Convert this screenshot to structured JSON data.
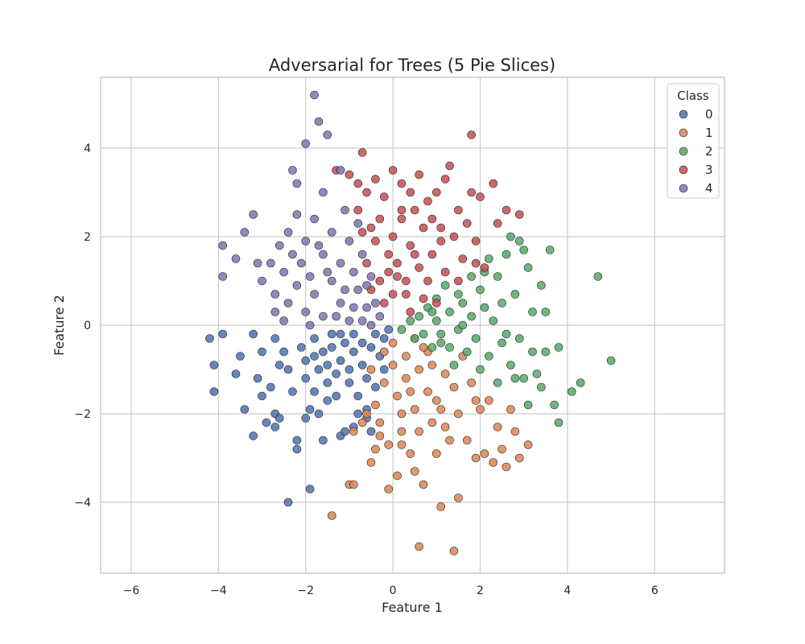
{
  "chart_data": {
    "type": "scatter",
    "title": "Adversarial for Trees (5 Pie Slices)",
    "xlabel": "Feature 1",
    "ylabel": "Feature 2",
    "xlim": [
      -6.7,
      7.6
    ],
    "ylim": [
      -5.6,
      5.6
    ],
    "xticks": [
      -6,
      -4,
      -2,
      0,
      2,
      4,
      6
    ],
    "yticks": [
      -4,
      -2,
      0,
      2,
      4
    ],
    "grid": true,
    "legend": {
      "title": "Class",
      "placement": "top-right"
    },
    "series": [
      {
        "name": "0",
        "color": "#4c72b0",
        "points": [
          [
            -4.2,
            -0.3
          ],
          [
            -4.1,
            -0.9
          ],
          [
            -4.1,
            -1.5
          ],
          [
            -3.9,
            -0.2
          ],
          [
            -3.5,
            -0.7
          ],
          [
            -3.6,
            -1.1
          ],
          [
            -3.4,
            -1.9
          ],
          [
            -3.2,
            -0.2
          ],
          [
            -3.2,
            -2.5
          ],
          [
            -3.1,
            -1.2
          ],
          [
            -3.0,
            -0.6
          ],
          [
            -3.0,
            -1.6
          ],
          [
            -2.9,
            -2.2
          ],
          [
            -2.8,
            -1.4
          ],
          [
            -2.7,
            -0.3
          ],
          [
            -2.7,
            -2.0
          ],
          [
            -2.7,
            -2.3
          ],
          [
            -2.6,
            -0.9
          ],
          [
            -2.5,
            -0.6
          ],
          [
            -2.4,
            -4.0
          ],
          [
            -2.3,
            -1.5
          ],
          [
            -2.2,
            -2.6
          ],
          [
            -2.2,
            -2.8
          ],
          [
            -2.1,
            -0.5
          ],
          [
            -2.0,
            -0.8
          ],
          [
            -2.0,
            -1.2
          ],
          [
            -1.9,
            -1.9
          ],
          [
            -1.9,
            -3.7
          ],
          [
            -1.8,
            -0.3
          ],
          [
            -1.8,
            -1.5
          ],
          [
            -1.7,
            -1.0
          ],
          [
            -1.7,
            -2.0
          ],
          [
            -1.6,
            -0.6
          ],
          [
            -1.6,
            -2.6
          ],
          [
            -1.5,
            -0.9
          ],
          [
            -1.5,
            -1.3
          ],
          [
            -1.4,
            -0.2
          ],
          [
            -1.4,
            -0.5
          ],
          [
            -1.3,
            -1.1
          ],
          [
            -1.3,
            -1.6
          ],
          [
            -1.2,
            -2.5
          ],
          [
            -1.2,
            -0.8
          ],
          [
            -1.1,
            -0.4
          ],
          [
            -1.0,
            -1.3
          ],
          [
            -1.0,
            -1.0
          ],
          [
            -0.9,
            -0.2
          ],
          [
            -0.9,
            -0.6
          ],
          [
            -0.9,
            -2.3
          ],
          [
            -0.8,
            -1.6
          ],
          [
            -0.8,
            -2.0
          ],
          [
            -0.7,
            -0.4
          ],
          [
            -0.7,
            -0.9
          ],
          [
            -0.6,
            -1.2
          ],
          [
            -0.6,
            -1.9
          ],
          [
            -0.5,
            -0.5
          ],
          [
            -0.5,
            -2.4
          ],
          [
            -0.4,
            -0.2
          ],
          [
            -0.4,
            -1.4
          ],
          [
            -0.3,
            -0.7
          ],
          [
            -0.2,
            -0.3
          ],
          [
            -0.2,
            -1.0
          ],
          [
            -0.1,
            -0.1
          ],
          [
            -2.4,
            -1.0
          ],
          [
            -1.5,
            -1.7
          ],
          [
            -2.0,
            -2.1
          ],
          [
            -1.1,
            -2.4
          ],
          [
            -0.6,
            -2.1
          ],
          [
            -2.6,
            -2.1
          ],
          [
            -1.8,
            -0.7
          ],
          [
            -1.2,
            -0.2
          ]
        ]
      },
      {
        "name": "1",
        "color": "#dd8452",
        "points": [
          [
            -1.4,
            -4.3
          ],
          [
            -1.0,
            -3.6
          ],
          [
            -0.9,
            -3.6
          ],
          [
            -0.9,
            -2.4
          ],
          [
            -0.7,
            -2.2
          ],
          [
            -0.5,
            -3.1
          ],
          [
            -0.4,
            -2.8
          ],
          [
            -0.4,
            -1.8
          ],
          [
            -0.3,
            -2.2
          ],
          [
            -0.2,
            -1.3
          ],
          [
            -0.1,
            -3.7
          ],
          [
            -0.1,
            -2.7
          ],
          [
            0.0,
            -0.4
          ],
          [
            0.0,
            -0.9
          ],
          [
            0.1,
            -1.6
          ],
          [
            0.1,
            -3.4
          ],
          [
            0.2,
            -2.7
          ],
          [
            0.2,
            -2.0
          ],
          [
            0.3,
            -0.7
          ],
          [
            0.3,
            -1.2
          ],
          [
            0.4,
            -2.9
          ],
          [
            0.5,
            -0.3
          ],
          [
            0.5,
            -1.9
          ],
          [
            0.6,
            -2.4
          ],
          [
            0.6,
            -1.0
          ],
          [
            0.6,
            -5.0
          ],
          [
            0.7,
            -3.6
          ],
          [
            0.8,
            -1.5
          ],
          [
            0.8,
            -0.6
          ],
          [
            0.9,
            -2.2
          ],
          [
            1.0,
            -2.9
          ],
          [
            1.1,
            -4.1
          ],
          [
            1.1,
            -1.9
          ],
          [
            1.2,
            -1.1
          ],
          [
            1.3,
            -2.6
          ],
          [
            1.4,
            -5.1
          ],
          [
            1.4,
            -1.4
          ],
          [
            1.5,
            -3.9
          ],
          [
            1.5,
            -2.0
          ],
          [
            1.6,
            -0.7
          ],
          [
            1.7,
            -2.6
          ],
          [
            1.8,
            -1.3
          ],
          [
            1.9,
            -3.0
          ],
          [
            2.0,
            -1.9
          ],
          [
            2.1,
            -2.9
          ],
          [
            2.2,
            -1.7
          ],
          [
            2.3,
            -3.1
          ],
          [
            2.4,
            -2.3
          ],
          [
            2.5,
            -2.8
          ],
          [
            2.6,
            -3.2
          ],
          [
            2.7,
            -1.9
          ],
          [
            2.8,
            -2.4
          ],
          [
            3.1,
            -2.7
          ],
          [
            -0.5,
            -1.0
          ],
          [
            -0.2,
            -0.6
          ],
          [
            0.4,
            -1.5
          ],
          [
            0.9,
            -0.9
          ],
          [
            1.2,
            -2.3
          ],
          [
            -0.3,
            -2.5
          ],
          [
            0.7,
            -0.5
          ],
          [
            1.9,
            -1.7
          ],
          [
            0.2,
            -2.4
          ],
          [
            1.0,
            -1.7
          ],
          [
            -0.6,
            -2.0
          ],
          [
            0.5,
            -3.3
          ],
          [
            2.9,
            -3.0
          ]
        ]
      },
      {
        "name": "2",
        "color": "#55a868",
        "points": [
          [
            0.2,
            -0.1
          ],
          [
            0.4,
            0.1
          ],
          [
            0.5,
            -0.3
          ],
          [
            0.6,
            0.2
          ],
          [
            0.7,
            -0.2
          ],
          [
            0.8,
            0.4
          ],
          [
            0.9,
            -0.5
          ],
          [
            1.0,
            0.6
          ],
          [
            1.0,
            0.1
          ],
          [
            1.1,
            -0.4
          ],
          [
            1.2,
            0.9
          ],
          [
            1.3,
            0.3
          ],
          [
            1.4,
            -0.9
          ],
          [
            1.5,
            0.7
          ],
          [
            1.5,
            -0.1
          ],
          [
            1.6,
            0.5
          ],
          [
            1.7,
            -0.6
          ],
          [
            1.8,
            1.1
          ],
          [
            1.8,
            0.2
          ],
          [
            1.9,
            -0.3
          ],
          [
            2.0,
            0.8
          ],
          [
            2.0,
            -1.0
          ],
          [
            2.1,
            0.4
          ],
          [
            2.2,
            1.5
          ],
          [
            2.2,
            -0.7
          ],
          [
            2.3,
            0.1
          ],
          [
            2.4,
            1.1
          ],
          [
            2.4,
            -1.3
          ],
          [
            2.5,
            0.5
          ],
          [
            2.6,
            -0.2
          ],
          [
            2.6,
            1.6
          ],
          [
            2.7,
            -0.9
          ],
          [
            2.7,
            2.0
          ],
          [
            2.8,
            0.7
          ],
          [
            2.9,
            1.9
          ],
          [
            2.9,
            -0.3
          ],
          [
            3.0,
            -1.2
          ],
          [
            3.1,
            1.3
          ],
          [
            3.1,
            -1.8
          ],
          [
            3.2,
            0.3
          ],
          [
            3.2,
            -0.6
          ],
          [
            3.3,
            -1.1
          ],
          [
            3.4,
            0.9
          ],
          [
            3.4,
            -1.4
          ],
          [
            3.5,
            0.3
          ],
          [
            3.5,
            -0.6
          ],
          [
            3.6,
            1.7
          ],
          [
            3.7,
            -1.8
          ],
          [
            3.8,
            -0.5
          ],
          [
            3.8,
            -2.2
          ],
          [
            4.1,
            -1.5
          ],
          [
            4.3,
            -1.3
          ],
          [
            4.7,
            1.1
          ],
          [
            5.0,
            -0.8
          ],
          [
            1.3,
            -0.5
          ],
          [
            2.1,
            1.2
          ],
          [
            1.6,
            0.0
          ],
          [
            2.8,
            -1.2
          ],
          [
            0.9,
            0.3
          ],
          [
            2.5,
            -0.4
          ],
          [
            3.0,
            1.7
          ],
          [
            1.1,
            -0.2
          ]
        ]
      },
      {
        "name": "3",
        "color": "#c44e52",
        "points": [
          [
            -1.3,
            3.5
          ],
          [
            -1.0,
            3.4
          ],
          [
            -0.8,
            3.2
          ],
          [
            -0.8,
            2.6
          ],
          [
            -0.7,
            3.9
          ],
          [
            -0.6,
            3.0
          ],
          [
            -0.5,
            2.2
          ],
          [
            -0.4,
            3.3
          ],
          [
            -0.3,
            2.4
          ],
          [
            -0.2,
            2.9
          ],
          [
            -0.1,
            1.6
          ],
          [
            0.0,
            3.5
          ],
          [
            0.0,
            2.0
          ],
          [
            0.1,
            1.1
          ],
          [
            0.2,
            3.2
          ],
          [
            0.2,
            2.4
          ],
          [
            0.3,
            0.7
          ],
          [
            0.4,
            1.8
          ],
          [
            0.4,
            3.0
          ],
          [
            0.5,
            2.6
          ],
          [
            0.6,
            1.3
          ],
          [
            0.6,
            3.4
          ],
          [
            0.7,
            2.2
          ],
          [
            0.8,
            1.0
          ],
          [
            0.8,
            2.8
          ],
          [
            0.9,
            1.6
          ],
          [
            1.0,
            3.0
          ],
          [
            1.0,
            0.5
          ],
          [
            1.1,
            2.2
          ],
          [
            1.2,
            3.3
          ],
          [
            1.2,
            1.2
          ],
          [
            1.3,
            3.6
          ],
          [
            1.4,
            2.0
          ],
          [
            1.5,
            2.6
          ],
          [
            1.6,
            1.5
          ],
          [
            1.7,
            2.3
          ],
          [
            1.8,
            3.0
          ],
          [
            1.8,
            4.3
          ],
          [
            1.9,
            1.9
          ],
          [
            2.0,
            2.9
          ],
          [
            2.1,
            1.3
          ],
          [
            2.3,
            3.2
          ],
          [
            2.4,
            2.3
          ],
          [
            2.6,
            2.6
          ],
          [
            2.9,
            2.5
          ],
          [
            -0.6,
            1.4
          ],
          [
            -0.5,
            0.8
          ],
          [
            -0.3,
            1.0
          ],
          [
            -0.2,
            0.5
          ],
          [
            0.0,
            0.7
          ],
          [
            0.1,
            1.4
          ],
          [
            0.3,
            1.0
          ],
          [
            0.5,
            1.6
          ],
          [
            0.7,
            0.6
          ],
          [
            -0.4,
            1.9
          ],
          [
            0.2,
            2.6
          ],
          [
            1.1,
            1.9
          ],
          [
            0.9,
            2.4
          ],
          [
            -0.1,
            1.2
          ],
          [
            1.5,
            1.0
          ],
          [
            0.4,
            0.3
          ],
          [
            -0.7,
            2.1
          ],
          [
            1.9,
            1.4
          ]
        ]
      },
      {
        "name": "4",
        "color": "#8172b2",
        "points": [
          [
            -1.8,
            5.2
          ],
          [
            -1.7,
            4.6
          ],
          [
            -1.5,
            4.3
          ],
          [
            -2.0,
            4.1
          ],
          [
            -2.3,
            3.5
          ],
          [
            -2.2,
            3.2
          ],
          [
            -1.6,
            3.0
          ],
          [
            -1.2,
            3.5
          ],
          [
            -2.4,
            2.1
          ],
          [
            -3.2,
            2.5
          ],
          [
            -3.9,
            1.8
          ],
          [
            -3.4,
            2.1
          ],
          [
            -3.6,
            1.5
          ],
          [
            -3.1,
            1.4
          ],
          [
            -2.8,
            1.4
          ],
          [
            -2.5,
            1.2
          ],
          [
            -2.2,
            2.5
          ],
          [
            -2.0,
            1.9
          ],
          [
            -1.8,
            2.4
          ],
          [
            -1.6,
            1.6
          ],
          [
            -1.4,
            2.1
          ],
          [
            -1.2,
            1.4
          ],
          [
            -1.0,
            1.9
          ],
          [
            -0.9,
            1.2
          ],
          [
            -0.8,
            0.8
          ],
          [
            -0.7,
            1.6
          ],
          [
            -0.6,
            0.4
          ],
          [
            -0.5,
            1.1
          ],
          [
            -0.4,
            0.5
          ],
          [
            -0.3,
            0.2
          ],
          [
            -3.9,
            1.1
          ],
          [
            -3.0,
            1.0
          ],
          [
            -2.7,
            0.7
          ],
          [
            -2.4,
            0.5
          ],
          [
            -2.2,
            0.9
          ],
          [
            -2.0,
            0.3
          ],
          [
            -1.8,
            0.7
          ],
          [
            -1.6,
            0.2
          ],
          [
            -1.4,
            1.0
          ],
          [
            -1.2,
            0.5
          ],
          [
            -1.0,
            0.1
          ],
          [
            -0.9,
            0.4
          ],
          [
            -0.7,
            0.1
          ],
          [
            -0.5,
            0.0
          ],
          [
            -2.7,
            0.3
          ],
          [
            -2.5,
            0.1
          ],
          [
            -2.1,
            1.4
          ],
          [
            -1.5,
            1.2
          ],
          [
            -1.9,
            1.1
          ],
          [
            -1.1,
            0.8
          ],
          [
            -0.6,
            0.9
          ],
          [
            -1.3,
            0.2
          ],
          [
            -2.3,
            1.6
          ],
          [
            -1.7,
            1.8
          ],
          [
            -0.8,
            2.3
          ],
          [
            -2.6,
            1.8
          ],
          [
            -1.9,
            0.0
          ],
          [
            -1.1,
            2.6
          ]
        ]
      }
    ]
  }
}
